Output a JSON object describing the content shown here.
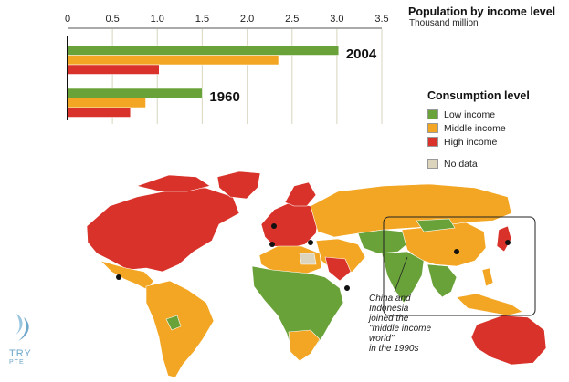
{
  "chart_data": {
    "type": "bar",
    "orientation": "horizontal",
    "title": "Population by income level",
    "subtitle": "Thousand million",
    "categories": [
      "2004",
      "1960"
    ],
    "series": [
      {
        "name": "Low income",
        "color": "#6aa23a",
        "values": [
          3.02,
          1.5
        ]
      },
      {
        "name": "Middle income",
        "color": "#f2a623",
        "values": [
          2.35,
          0.87
        ]
      },
      {
        "name": "High income",
        "color": "#d8322a",
        "values": [
          1.02,
          0.7
        ]
      }
    ],
    "xlim": [
      0,
      3.5
    ],
    "xticks": [
      "0",
      "0.5",
      "1.0",
      "1.5",
      "2.0",
      "2.5",
      "3.0",
      "3.5"
    ],
    "grid": true,
    "legend_position": "right"
  },
  "legend": {
    "title": "Consumption level",
    "items": [
      {
        "label": "Low income",
        "color": "#6aa23a"
      },
      {
        "label": "Middle income",
        "color": "#f2a623"
      },
      {
        "label": "High income",
        "color": "#d8322a"
      },
      {
        "label": "No data",
        "color": "#ddd4bd"
      }
    ]
  },
  "map": {
    "annotation_lines": [
      "China and",
      "Indonesia",
      "joined the",
      "\"middle income world\"",
      "in the 1990s"
    ]
  },
  "logo": {
    "text_line1": "TRY",
    "text_line2": "PTE"
  }
}
